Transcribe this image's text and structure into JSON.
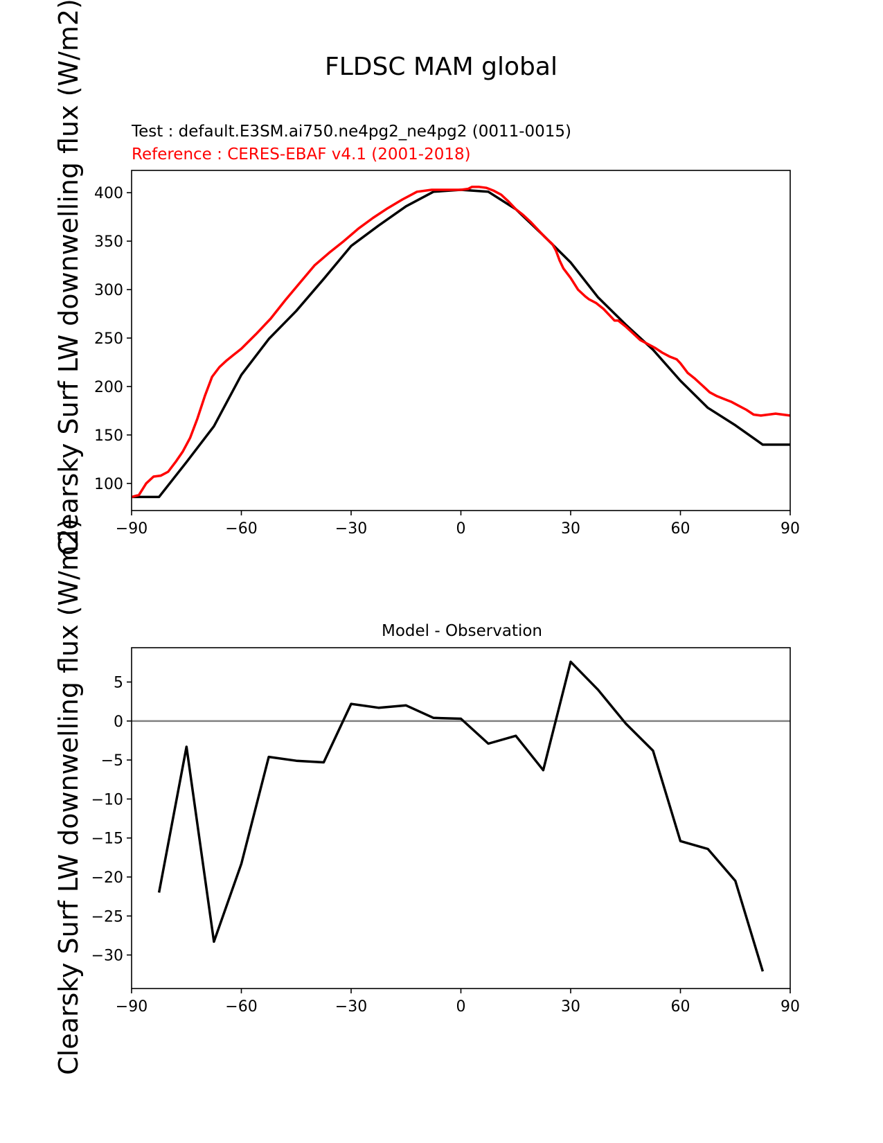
{
  "figure": {
    "title": "FLDSC MAM global",
    "ylabel": "Clearsky Surf LW downwelling flux (W/m2)"
  },
  "chart_data": [
    {
      "type": "line",
      "panel": "top",
      "test_label": "Test : default.E3SM.ai750.ne4pg2_ne4pg2 (0011-0015)",
      "reference_label": "Reference : CERES-EBAF v4.1 (2001-2018)",
      "xlim": [
        -90,
        90
      ],
      "ylim": [
        72,
        423
      ],
      "xticks": [
        -90,
        -60,
        -30,
        0,
        30,
        60,
        90
      ],
      "yticks": [
        100,
        150,
        200,
        250,
        300,
        350,
        400
      ],
      "colors": {
        "test": "#000000",
        "reference": "#ff0000"
      },
      "series": [
        {
          "role": "test",
          "color": "#000000",
          "x": [
            -90,
            -82.5,
            -75,
            -67.5,
            -60,
            -52.5,
            -45,
            -37.5,
            -30,
            -22.5,
            -15,
            -7.5,
            0,
            7.5,
            15,
            22.5,
            30,
            37.5,
            45,
            52.5,
            60,
            67.5,
            75,
            82.5,
            90
          ],
          "y": [
            86,
            86,
            122,
            159,
            212,
            249,
            278,
            311,
            345,
            366,
            386,
            401,
            403,
            401,
            383,
            356,
            328,
            292,
            264,
            238,
            206,
            178,
            160,
            140,
            140
          ]
        },
        {
          "role": "reference",
          "color": "#ff0000",
          "x": [
            -90,
            -88,
            -86,
            -84,
            -82,
            -80,
            -78,
            -76,
            -74,
            -72,
            -70,
            -68,
            -66,
            -64,
            -62,
            -60,
            -56,
            -52,
            -48,
            -44,
            -40,
            -36,
            -32,
            -28,
            -24,
            -20,
            -16,
            -12,
            -8,
            -4,
            0,
            2,
            3,
            5,
            7,
            9,
            11,
            13,
            15,
            17,
            19,
            21,
            23,
            25,
            26,
            27,
            28,
            30,
            32,
            34,
            35,
            37,
            39,
            41,
            42,
            43,
            45,
            47,
            49,
            51,
            53,
            55,
            57,
            59,
            60,
            62,
            64,
            66,
            68,
            70,
            72,
            74,
            76,
            78,
            80,
            82,
            84,
            86,
            88,
            90
          ],
          "y": [
            86,
            88,
            100,
            107,
            108,
            112,
            122,
            133,
            147,
            167,
            190,
            210,
            220,
            227,
            233,
            239,
            254,
            270,
            289,
            307,
            325,
            338,
            350,
            363,
            374,
            384,
            393,
            401,
            403,
            403,
            403,
            404,
            406,
            406,
            405,
            402,
            398,
            391,
            383,
            377,
            370,
            362,
            354,
            347,
            340,
            330,
            322,
            312,
            300,
            293,
            290,
            286,
            280,
            272,
            268,
            268,
            262,
            255,
            248,
            244,
            240,
            235,
            231,
            228,
            224,
            214,
            208,
            201,
            194,
            190,
            187,
            184,
            180,
            176,
            171,
            170,
            171,
            172,
            171,
            170
          ]
        }
      ]
    },
    {
      "type": "line",
      "panel": "bottom",
      "title": "Model - Observation",
      "xlim": [
        -90,
        90
      ],
      "ylim": [
        -34.3,
        9.4
      ],
      "xticks": [
        -90,
        -60,
        -30,
        0,
        30,
        60,
        90
      ],
      "yticks": [
        5,
        0,
        -5,
        -10,
        -15,
        -20,
        -25,
        -30
      ],
      "zero_line_color": "#808080",
      "series": [
        {
          "role": "difference",
          "color": "#000000",
          "x": [
            -82.5,
            -75,
            -67.5,
            -60,
            -52.5,
            -45,
            -37.5,
            -30,
            -22.5,
            -15,
            -7.5,
            0,
            7.5,
            15,
            22.5,
            30,
            37.5,
            45,
            52.5,
            60,
            67.5,
            75,
            82.5
          ],
          "y": [
            -22,
            -3.3,
            -28.3,
            -18.3,
            -4.6,
            -5.1,
            -5.3,
            2.2,
            1.7,
            2.0,
            0.4,
            0.3,
            -2.9,
            -1.9,
            -6.3,
            7.6,
            4.0,
            -0.3,
            -3.8,
            -15.4,
            -16.4,
            -20.5,
            -32.1
          ]
        }
      ]
    }
  ]
}
